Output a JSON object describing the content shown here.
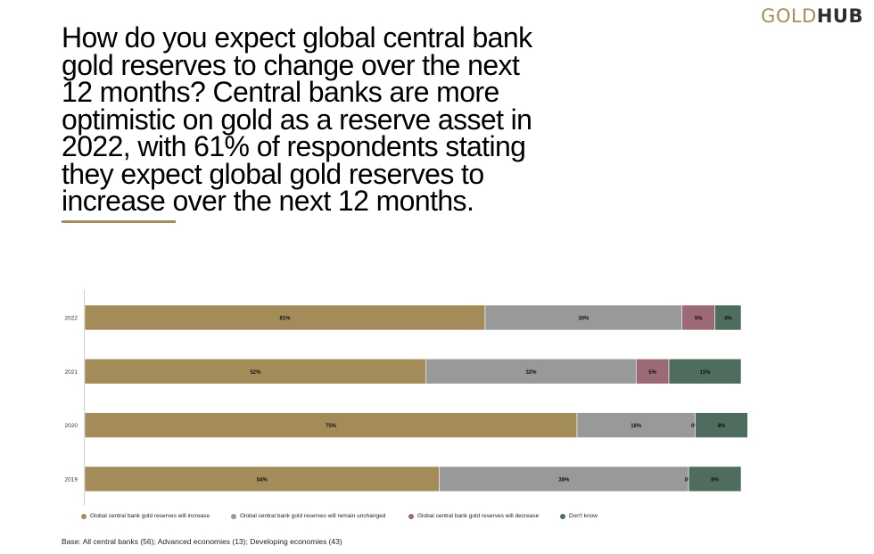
{
  "brand": {
    "part1": "GOLD",
    "part2": "HUB"
  },
  "headline": "How do you expect global central bank gold reserves to change over the next 12 months? Central banks are more optimistic on gold as a reserve asset in 2022, with 61% of respondents stating they expect global gold reserves to increase over the next 12 months.",
  "base_note": "Base: All central banks (56); Advanced economies (13); Developing economies (43)",
  "colors": {
    "accent": "#a38c5a"
  },
  "chart_data": {
    "type": "bar",
    "orientation": "horizontal",
    "stacked": true,
    "categories": [
      "2022",
      "2021",
      "2020",
      "2019"
    ],
    "series": [
      {
        "name": "Global central bank gold reserves will increase",
        "color": "#a38c5a",
        "values": [
          61,
          52,
          75,
          54
        ],
        "labels": [
          "61%",
          "52%",
          "75%",
          "54%"
        ]
      },
      {
        "name": "Global central bank gold reserves will remain unchanged",
        "color": "#999999",
        "values": [
          30,
          32,
          18,
          38
        ],
        "labels": [
          "30%",
          "32%",
          "18%",
          "38%"
        ]
      },
      {
        "name": "Global central bank gold reserves will decrease",
        "color": "#9b6a76",
        "values": [
          5,
          5,
          0,
          0
        ],
        "labels": [
          "5%",
          "5%",
          "0%",
          "0%"
        ]
      },
      {
        "name": "Don't know",
        "color": "#4e6d5e",
        "values": [
          4,
          11,
          8,
          8
        ],
        "labels": [
          "4%",
          "11%",
          "8%",
          "8%"
        ]
      }
    ],
    "xlim": [
      0,
      100
    ],
    "grid": false,
    "legend_position": "bottom"
  }
}
